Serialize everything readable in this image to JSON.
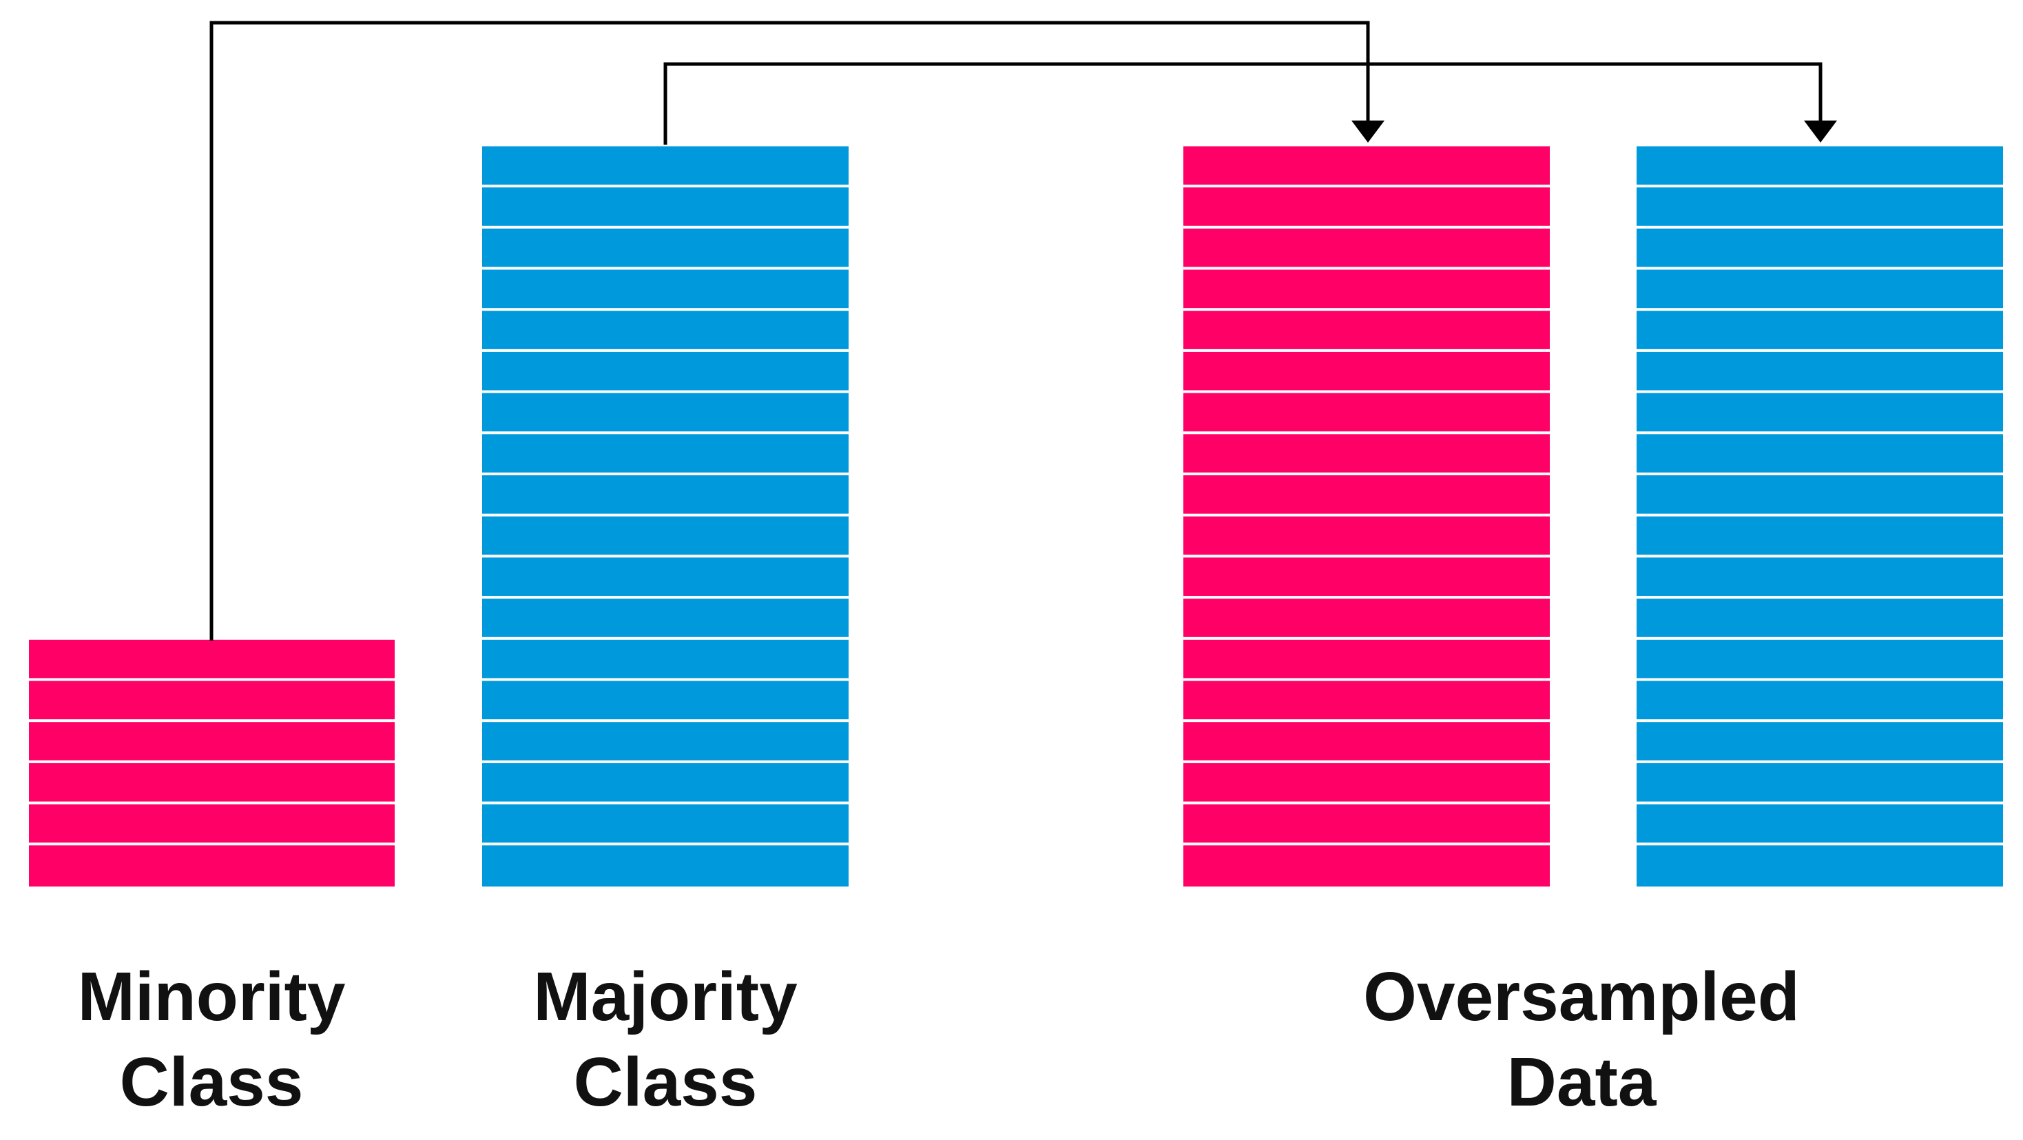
{
  "colors": {
    "minority": "#ff0066",
    "majority": "#0099db",
    "connector": "#000000",
    "separator": "#ffffff",
    "text": "#111111"
  },
  "stacks": [
    {
      "id": "minority-class",
      "class": "minority",
      "rows": 6
    },
    {
      "id": "majority-class",
      "class": "majority",
      "rows": 18
    },
    {
      "id": "oversampled-minority",
      "class": "minority",
      "rows": 18
    },
    {
      "id": "oversampled-majority",
      "class": "majority",
      "rows": 18
    }
  ],
  "labels": {
    "minority_class": {
      "line1": "Minority",
      "line2": "Class"
    },
    "majority_class": {
      "line1": "Majority",
      "line2": "Class"
    },
    "oversampled_data": {
      "line1": "Oversampled",
      "line2": "Data"
    }
  },
  "connectors": [
    {
      "from": "minority-class",
      "to": "oversampled-minority"
    },
    {
      "from": "majority-class",
      "to": "oversampled-majority"
    }
  ]
}
